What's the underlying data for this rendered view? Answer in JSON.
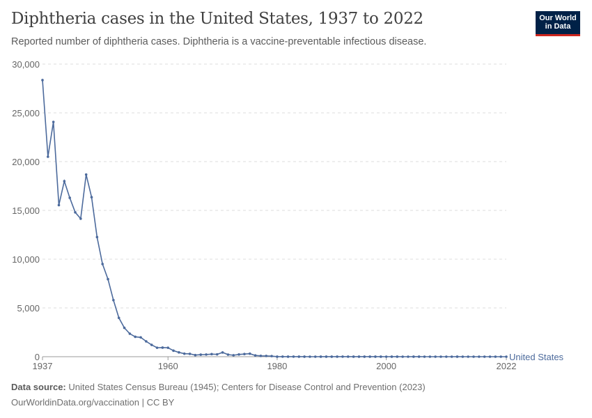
{
  "title": "Diphtheria cases in the United States, 1937 to 2022",
  "subtitle": "Reported number of diphtheria cases. Diphtheria is a vaccine-preventable infectious disease.",
  "logo": {
    "line1": "Our World",
    "line2": "in Data"
  },
  "footer": {
    "source_label": "Data source:",
    "source": "United States Census Bureau (1945); Centers for Disease Control and Prevention (2023)",
    "url": "OurWorldinData.org/vaccination | CC BY"
  },
  "chart_data": {
    "type": "line",
    "title": "Diphtheria cases in the United States, 1937 to 2022",
    "xlim": [
      1937,
      2022
    ],
    "ylim": [
      0,
      30000
    ],
    "x_ticks": [
      "1937",
      "1960",
      "1980",
      "2000",
      "2022"
    ],
    "y_ticks": [
      "0",
      "5,000",
      "10,000",
      "15,000",
      "20,000",
      "25,000",
      "30,000"
    ],
    "y_tick_values": [
      0,
      5000,
      10000,
      15000,
      20000,
      25000,
      30000
    ],
    "x_tick_values": [
      1937,
      1960,
      1980,
      2000,
      2022
    ],
    "grid": "horizontal dashed",
    "color": "#4c6a9c",
    "series": [
      {
        "name": "United States",
        "start_year": 1937,
        "values": [
          28360,
          20500,
          24070,
          15540,
          18000,
          16290,
          14800,
          14150,
          18675,
          16350,
          12260,
          9500,
          7950,
          5800,
          3980,
          2960,
          2355,
          2040,
          1980,
          1570,
          1210,
          920,
          930,
          920,
          620,
          440,
          310,
          293,
          164,
          209,
          219,
          260,
          241,
          435,
          215,
          152,
          228,
          272,
          307,
          128,
          84,
          76,
          59,
          3,
          5,
          2,
          5,
          1,
          3,
          0,
          0,
          3,
          2,
          3,
          4,
          5,
          4,
          2,
          1,
          3,
          1,
          2,
          1,
          0,
          1,
          1,
          0,
          0,
          1,
          1,
          0,
          0,
          0,
          0,
          0,
          0,
          1,
          0,
          0,
          0,
          0,
          0,
          0,
          0,
          0,
          0
        ]
      }
    ]
  }
}
